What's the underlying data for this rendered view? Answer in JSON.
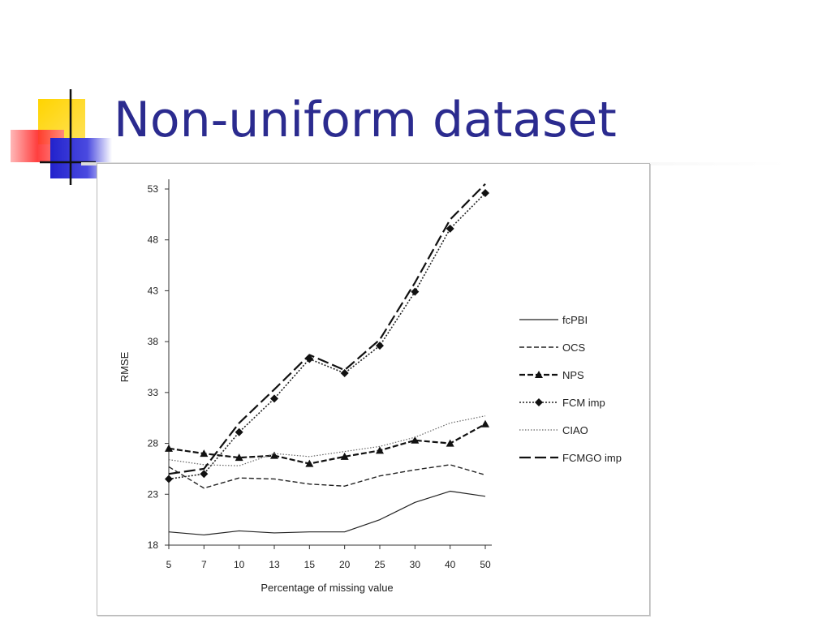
{
  "slide": {
    "title": "Non-uniform dataset"
  },
  "chart_data": {
    "type": "line",
    "xlabel": "Percentage of missing value",
    "ylabel": "RMSE",
    "x": [
      "5",
      "7",
      "10",
      "13",
      "15",
      "20",
      "25",
      "30",
      "40",
      "50"
    ],
    "yticks": [
      "18",
      "23",
      "28",
      "33",
      "38",
      "43",
      "48",
      "53"
    ],
    "ylim": [
      18,
      53
    ],
    "legend_position": "right",
    "grid": false,
    "series": [
      {
        "name": "fcPBI",
        "style": "solid",
        "marker": "none",
        "values": [
          19.3,
          19.0,
          19.4,
          19.2,
          19.3,
          19.3,
          20.5,
          22.2,
          23.3,
          22.8
        ]
      },
      {
        "name": "OCS",
        "style": "dashed",
        "marker": "none",
        "values": [
          25.7,
          23.6,
          24.6,
          24.5,
          24.0,
          23.8,
          24.8,
          25.4,
          25.9,
          24.9
        ]
      },
      {
        "name": "NPS",
        "style": "dashed-bold",
        "marker": "triangle",
        "values": [
          27.5,
          27.0,
          26.6,
          26.8,
          26.0,
          26.7,
          27.3,
          28.3,
          28.0,
          29.9
        ]
      },
      {
        "name": "FCM imp",
        "style": "dotted",
        "marker": "diamond",
        "values": [
          24.5,
          25.0,
          29.1,
          32.4,
          36.3,
          34.9,
          37.6,
          42.9,
          49.1,
          52.6
        ]
      },
      {
        "name": "CIAO",
        "style": "dotted-light",
        "marker": "none",
        "values": [
          26.4,
          25.9,
          25.8,
          27.0,
          26.7,
          27.2,
          27.7,
          28.6,
          30.0,
          30.7
        ]
      },
      {
        "name": "FCMGO imp",
        "style": "long-dash",
        "marker": "none",
        "values": [
          25.0,
          25.5,
          30.0,
          33.3,
          36.7,
          35.2,
          38.2,
          43.8,
          50.0,
          53.5
        ]
      }
    ]
  }
}
